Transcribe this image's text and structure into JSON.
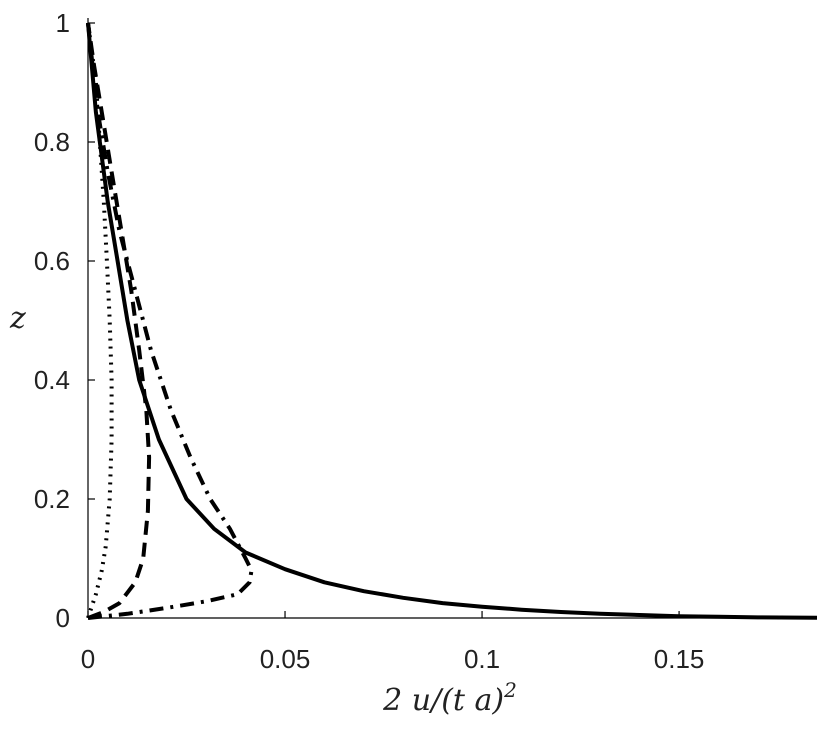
{
  "chart_data": {
    "type": "line",
    "title": "",
    "xlabel": "2 u/(t a)",
    "xlabel_superscript": "2",
    "ylabel": "z",
    "xlim": [
      0,
      0.185
    ],
    "ylim": [
      0,
      1
    ],
    "x_ticks": [
      0,
      0.05,
      0.1,
      0.15
    ],
    "x_tick_labels": [
      "0",
      "0.05",
      "0.1",
      "0.15"
    ],
    "y_ticks": [
      0,
      0.2,
      0.4,
      0.6,
      0.8,
      1
    ],
    "y_tick_labels": [
      "0",
      "0.2",
      "0.4",
      "0.6",
      "0.8",
      "1"
    ],
    "grid": false,
    "legend": "none",
    "series": [
      {
        "style": "dotted",
        "color": "#000000",
        "points": [
          [
            0,
            0
          ],
          [
            0.001,
            0.02
          ],
          [
            0.002,
            0.04
          ],
          [
            0.0035,
            0.08
          ],
          [
            0.0045,
            0.12
          ],
          [
            0.0055,
            0.2
          ],
          [
            0.006,
            0.3
          ],
          [
            0.006,
            0.4
          ],
          [
            0.0055,
            0.5
          ],
          [
            0.0048,
            0.6
          ],
          [
            0.004,
            0.7
          ],
          [
            0.003,
            0.8
          ],
          [
            0.002,
            0.9
          ],
          [
            0,
            1
          ]
        ]
      },
      {
        "style": "dashed",
        "color": "#000000",
        "points": [
          [
            0,
            0
          ],
          [
            0.004,
            0.01
          ],
          [
            0.008,
            0.025
          ],
          [
            0.012,
            0.06
          ],
          [
            0.014,
            0.1
          ],
          [
            0.0152,
            0.18
          ],
          [
            0.0155,
            0.27
          ],
          [
            0.0148,
            0.35
          ],
          [
            0.013,
            0.45
          ],
          [
            0.011,
            0.55
          ],
          [
            0.0085,
            0.65
          ],
          [
            0.006,
            0.75
          ],
          [
            0.0035,
            0.85
          ],
          [
            0.0015,
            0.93
          ],
          [
            0,
            1
          ]
        ]
      },
      {
        "style": "dash-dot",
        "color": "#000000",
        "points": [
          [
            0,
            0
          ],
          [
            0.01,
            0.007
          ],
          [
            0.02,
            0.017
          ],
          [
            0.03,
            0.028
          ],
          [
            0.038,
            0.04
          ],
          [
            0.041,
            0.06
          ],
          [
            0.0415,
            0.08
          ],
          [
            0.04,
            0.1
          ],
          [
            0.036,
            0.15
          ],
          [
            0.031,
            0.2
          ],
          [
            0.026,
            0.27
          ],
          [
            0.021,
            0.35
          ],
          [
            0.016,
            0.45
          ],
          [
            0.012,
            0.55
          ],
          [
            0.008,
            0.65
          ],
          [
            0.005,
            0.75
          ],
          [
            0.0025,
            0.85
          ],
          [
            0.0008,
            0.95
          ],
          [
            0,
            1
          ]
        ]
      },
      {
        "style": "solid",
        "color": "#000000",
        "points": [
          [
            0,
            1
          ],
          [
            0.002,
            0.85
          ],
          [
            0.005,
            0.7
          ],
          [
            0.0075,
            0.6
          ],
          [
            0.01,
            0.5
          ],
          [
            0.013,
            0.4
          ],
          [
            0.018,
            0.3
          ],
          [
            0.025,
            0.2
          ],
          [
            0.032,
            0.15
          ],
          [
            0.04,
            0.11
          ],
          [
            0.05,
            0.082
          ],
          [
            0.06,
            0.06
          ],
          [
            0.07,
            0.045
          ],
          [
            0.08,
            0.034
          ],
          [
            0.09,
            0.025
          ],
          [
            0.1,
            0.019
          ],
          [
            0.11,
            0.014
          ],
          [
            0.12,
            0.01
          ],
          [
            0.13,
            0.007
          ],
          [
            0.14,
            0.005
          ],
          [
            0.15,
            0.003
          ],
          [
            0.16,
            0.002
          ],
          [
            0.17,
            0.001
          ],
          [
            0.185,
            0.0005
          ]
        ]
      }
    ]
  }
}
